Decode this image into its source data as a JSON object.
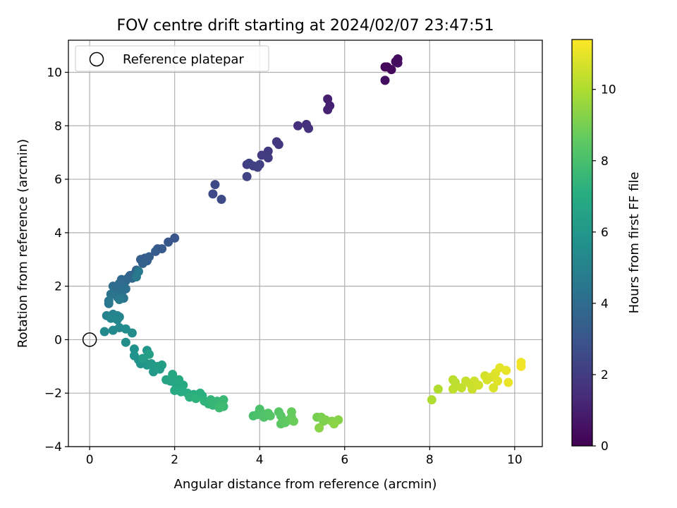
{
  "chart_data": {
    "type": "scatter",
    "title": "FOV centre drift starting at 2024/02/07 23:47:51",
    "xlabel": "Angular distance from reference (arcmin)",
    "ylabel": "Rotation from reference (arcmin)",
    "xlim": [
      -0.5,
      10.65
    ],
    "ylim": [
      -4,
      11.2
    ],
    "xticks": [
      0,
      2,
      4,
      6,
      8,
      10
    ],
    "yticks": [
      -4,
      -2,
      0,
      2,
      4,
      6,
      8,
      10
    ],
    "grid": true,
    "legend": {
      "position": "top-left",
      "entries": [
        "Reference platepar"
      ]
    },
    "reference_point": {
      "x": 0,
      "y": 0
    },
    "colorbar": {
      "label": "Hours from first FF file",
      "colormap": "viridis",
      "range": [
        0,
        11.4
      ],
      "ticks": [
        0,
        2,
        4,
        6,
        8,
        10
      ]
    },
    "series": [
      {
        "points": [
          {
            "x": 6.95,
            "y": 10.2,
            "c": 0.1
          },
          {
            "x": 7.0,
            "y": 10.2,
            "c": 0.2
          },
          {
            "x": 7.1,
            "y": 10.1,
            "c": 0.25
          },
          {
            "x": 7.2,
            "y": 10.4,
            "c": 0.3
          },
          {
            "x": 7.25,
            "y": 10.5,
            "c": 0.35
          },
          {
            "x": 7.25,
            "y": 10.35,
            "c": 0.4
          },
          {
            "x": 6.95,
            "y": 9.7,
            "c": 0.45
          },
          {
            "x": 5.6,
            "y": 9.0,
            "c": 1.0
          },
          {
            "x": 5.65,
            "y": 8.75,
            "c": 1.05
          },
          {
            "x": 5.6,
            "y": 8.6,
            "c": 1.1
          },
          {
            "x": 4.9,
            "y": 8.0,
            "c": 1.5
          },
          {
            "x": 5.1,
            "y": 8.05,
            "c": 1.55
          },
          {
            "x": 5.15,
            "y": 7.9,
            "c": 1.6
          },
          {
            "x": 4.4,
            "y": 7.4,
            "c": 1.8
          },
          {
            "x": 4.45,
            "y": 7.3,
            "c": 1.85
          },
          {
            "x": 4.2,
            "y": 7.05,
            "c": 1.9
          },
          {
            "x": 4.05,
            "y": 6.9,
            "c": 1.95
          },
          {
            "x": 4.2,
            "y": 6.8,
            "c": 2.0
          },
          {
            "x": 3.7,
            "y": 6.55,
            "c": 2.05
          },
          {
            "x": 3.85,
            "y": 6.5,
            "c": 2.1
          },
          {
            "x": 4.0,
            "y": 6.55,
            "c": 2.15
          },
          {
            "x": 3.75,
            "y": 6.6,
            "c": 2.2
          },
          {
            "x": 3.95,
            "y": 6.45,
            "c": 2.25
          },
          {
            "x": 3.7,
            "y": 6.1,
            "c": 2.3
          },
          {
            "x": 2.95,
            "y": 5.8,
            "c": 2.5
          },
          {
            "x": 2.9,
            "y": 5.45,
            "c": 2.55
          },
          {
            "x": 3.1,
            "y": 5.25,
            "c": 2.6
          },
          {
            "x": 2.0,
            "y": 3.8,
            "c": 3.0
          },
          {
            "x": 1.85,
            "y": 3.65,
            "c": 3.05
          },
          {
            "x": 1.6,
            "y": 3.4,
            "c": 3.15
          },
          {
            "x": 1.7,
            "y": 3.4,
            "c": 3.2
          },
          {
            "x": 1.55,
            "y": 3.3,
            "c": 3.25
          },
          {
            "x": 1.4,
            "y": 3.1,
            "c": 3.3
          },
          {
            "x": 1.3,
            "y": 3.05,
            "c": 3.35
          },
          {
            "x": 1.2,
            "y": 3.0,
            "c": 3.4
          },
          {
            "x": 1.35,
            "y": 2.95,
            "c": 3.45
          },
          {
            "x": 1.25,
            "y": 2.85,
            "c": 3.5
          },
          {
            "x": 1.1,
            "y": 2.6,
            "c": 3.55
          },
          {
            "x": 1.05,
            "y": 2.45,
            "c": 3.6
          },
          {
            "x": 0.95,
            "y": 2.4,
            "c": 3.65
          },
          {
            "x": 0.9,
            "y": 2.3,
            "c": 3.7
          },
          {
            "x": 1.0,
            "y": 2.3,
            "c": 3.75
          },
          {
            "x": 0.85,
            "y": 2.2,
            "c": 3.8
          },
          {
            "x": 0.75,
            "y": 2.25,
            "c": 3.85
          },
          {
            "x": 0.7,
            "y": 2.1,
            "c": 3.9
          },
          {
            "x": 0.8,
            "y": 2.05,
            "c": 3.95
          },
          {
            "x": 0.65,
            "y": 2.0,
            "c": 4.0
          },
          {
            "x": 0.55,
            "y": 2.0,
            "c": 4.05
          },
          {
            "x": 0.6,
            "y": 1.85,
            "c": 4.1
          },
          {
            "x": 0.7,
            "y": 1.8,
            "c": 4.15
          },
          {
            "x": 0.85,
            "y": 1.9,
            "c": 4.2
          },
          {
            "x": 0.75,
            "y": 1.7,
            "c": 4.25
          },
          {
            "x": 0.5,
            "y": 1.7,
            "c": 4.3
          },
          {
            "x": 0.65,
            "y": 1.6,
            "c": 4.35
          },
          {
            "x": 0.8,
            "y": 1.55,
            "c": 4.4
          },
          {
            "x": 0.45,
            "y": 1.45,
            "c": 4.45
          },
          {
            "x": 0.45,
            "y": 1.35,
            "c": 4.5
          },
          {
            "x": 1.1,
            "y": 2.35,
            "c": 4.55
          },
          {
            "x": 1.15,
            "y": 2.55,
            "c": 4.6
          },
          {
            "x": 0.7,
            "y": 1.5,
            "c": 4.65
          },
          {
            "x": 0.4,
            "y": 0.9,
            "c": 5.0
          },
          {
            "x": 0.55,
            "y": 0.95,
            "c": 5.05
          },
          {
            "x": 0.65,
            "y": 0.9,
            "c": 5.1
          },
          {
            "x": 0.7,
            "y": 0.85,
            "c": 5.15
          },
          {
            "x": 0.5,
            "y": 0.8,
            "c": 5.2
          },
          {
            "x": 0.65,
            "y": 0.75,
            "c": 5.25
          },
          {
            "x": 0.7,
            "y": 0.45,
            "c": 5.3
          },
          {
            "x": 0.55,
            "y": 0.35,
            "c": 5.35
          },
          {
            "x": 0.35,
            "y": 0.3,
            "c": 5.4
          },
          {
            "x": 0.85,
            "y": 0.4,
            "c": 5.45
          },
          {
            "x": 1.0,
            "y": 0.25,
            "c": 5.5
          },
          {
            "x": 0.85,
            "y": -0.1,
            "c": 5.55
          },
          {
            "x": 1.05,
            "y": -0.35,
            "c": 5.7
          },
          {
            "x": 1.05,
            "y": -0.6,
            "c": 5.75
          },
          {
            "x": 1.15,
            "y": -0.75,
            "c": 5.8
          },
          {
            "x": 1.2,
            "y": -0.9,
            "c": 5.85
          },
          {
            "x": 1.3,
            "y": -0.85,
            "c": 5.9
          },
          {
            "x": 1.35,
            "y": -0.4,
            "c": 5.95
          },
          {
            "x": 1.35,
            "y": -0.95,
            "c": 6.0
          },
          {
            "x": 1.45,
            "y": -0.9,
            "c": 6.05
          },
          {
            "x": 1.5,
            "y": -1.0,
            "c": 6.1
          },
          {
            "x": 1.5,
            "y": -1.2,
            "c": 6.15
          },
          {
            "x": 1.6,
            "y": -1.0,
            "c": 6.2
          },
          {
            "x": 1.65,
            "y": -1.1,
            "c": 6.25
          },
          {
            "x": 1.7,
            "y": -0.95,
            "c": 6.3
          },
          {
            "x": 1.25,
            "y": -0.7,
            "c": 6.35
          },
          {
            "x": 1.4,
            "y": -0.55,
            "c": 6.4
          },
          {
            "x": 1.8,
            "y": -1.5,
            "c": 6.6
          },
          {
            "x": 1.9,
            "y": -1.55,
            "c": 6.65
          },
          {
            "x": 2.0,
            "y": -1.6,
            "c": 6.7
          },
          {
            "x": 1.95,
            "y": -1.3,
            "c": 6.75
          },
          {
            "x": 2.05,
            "y": -1.7,
            "c": 6.8
          },
          {
            "x": 2.1,
            "y": -1.5,
            "c": 6.85
          },
          {
            "x": 2.2,
            "y": -1.7,
            "c": 6.9
          },
          {
            "x": 2.0,
            "y": -1.9,
            "c": 6.95
          },
          {
            "x": 2.15,
            "y": -1.95,
            "c": 7.0
          },
          {
            "x": 2.3,
            "y": -2.0,
            "c": 7.05
          },
          {
            "x": 2.45,
            "y": -2.05,
            "c": 7.1
          },
          {
            "x": 2.6,
            "y": -2.0,
            "c": 7.15
          },
          {
            "x": 2.65,
            "y": -2.1,
            "c": 7.2
          },
          {
            "x": 2.35,
            "y": -2.15,
            "c": 7.25
          },
          {
            "x": 2.5,
            "y": -2.2,
            "c": 7.3
          },
          {
            "x": 2.7,
            "y": -2.3,
            "c": 7.35
          },
          {
            "x": 2.8,
            "y": -2.4,
            "c": 7.4
          },
          {
            "x": 2.85,
            "y": -2.25,
            "c": 7.45
          },
          {
            "x": 2.9,
            "y": -2.45,
            "c": 7.5
          },
          {
            "x": 3.0,
            "y": -2.3,
            "c": 7.55
          },
          {
            "x": 3.05,
            "y": -2.4,
            "c": 7.6
          },
          {
            "x": 3.15,
            "y": -2.25,
            "c": 7.65
          },
          {
            "x": 3.15,
            "y": -2.5,
            "c": 7.7
          },
          {
            "x": 3.05,
            "y": -2.55,
            "c": 7.75
          },
          {
            "x": 3.85,
            "y": -2.85,
            "c": 8.0
          },
          {
            "x": 3.95,
            "y": -2.8,
            "c": 8.05
          },
          {
            "x": 4.0,
            "y": -2.6,
            "c": 8.1
          },
          {
            "x": 4.05,
            "y": -2.75,
            "c": 8.15
          },
          {
            "x": 4.1,
            "y": -2.9,
            "c": 8.2
          },
          {
            "x": 4.2,
            "y": -2.75,
            "c": 8.25
          },
          {
            "x": 4.25,
            "y": -2.85,
            "c": 8.3
          },
          {
            "x": 4.45,
            "y": -2.7,
            "c": 8.35
          },
          {
            "x": 4.5,
            "y": -2.85,
            "c": 8.4
          },
          {
            "x": 4.55,
            "y": -3.0,
            "c": 8.45
          },
          {
            "x": 4.5,
            "y": -3.15,
            "c": 8.5
          },
          {
            "x": 4.6,
            "y": -3.1,
            "c": 8.55
          },
          {
            "x": 4.7,
            "y": -3.0,
            "c": 8.6
          },
          {
            "x": 4.75,
            "y": -2.9,
            "c": 8.65
          },
          {
            "x": 4.75,
            "y": -2.7,
            "c": 8.7
          },
          {
            "x": 4.8,
            "y": -3.05,
            "c": 8.75
          },
          {
            "x": 5.35,
            "y": -2.9,
            "c": 9.0
          },
          {
            "x": 5.45,
            "y": -2.9,
            "c": 9.05
          },
          {
            "x": 5.5,
            "y": -3.05,
            "c": 9.1
          },
          {
            "x": 5.55,
            "y": -3.0,
            "c": 9.15
          },
          {
            "x": 5.7,
            "y": -3.05,
            "c": 9.2
          },
          {
            "x": 5.85,
            "y": -3.0,
            "c": 9.25
          },
          {
            "x": 5.4,
            "y": -3.3,
            "c": 9.3
          },
          {
            "x": 5.75,
            "y": -3.15,
            "c": 9.35
          },
          {
            "x": 8.05,
            "y": -2.25,
            "c": 10.0
          },
          {
            "x": 8.2,
            "y": -1.85,
            "c": 10.05
          },
          {
            "x": 8.55,
            "y": -1.5,
            "c": 10.2
          },
          {
            "x": 8.6,
            "y": -1.6,
            "c": 10.25
          },
          {
            "x": 8.55,
            "y": -1.85,
            "c": 10.3
          },
          {
            "x": 8.75,
            "y": -1.8,
            "c": 10.35
          },
          {
            "x": 8.85,
            "y": -1.55,
            "c": 10.4
          },
          {
            "x": 8.95,
            "y": -1.65,
            "c": 10.45
          },
          {
            "x": 9.0,
            "y": -1.85,
            "c": 10.5
          },
          {
            "x": 9.05,
            "y": -1.55,
            "c": 10.55
          },
          {
            "x": 9.15,
            "y": -1.7,
            "c": 10.6
          },
          {
            "x": 9.3,
            "y": -1.35,
            "c": 10.65
          },
          {
            "x": 9.35,
            "y": -1.5,
            "c": 10.7
          },
          {
            "x": 9.45,
            "y": -1.4,
            "c": 10.75
          },
          {
            "x": 9.5,
            "y": -1.8,
            "c": 10.8
          },
          {
            "x": 9.55,
            "y": -1.25,
            "c": 10.85
          },
          {
            "x": 9.6,
            "y": -1.55,
            "c": 10.9
          },
          {
            "x": 9.65,
            "y": -1.05,
            "c": 10.95
          },
          {
            "x": 9.8,
            "y": -1.15,
            "c": 11.0
          },
          {
            "x": 9.85,
            "y": -1.6,
            "c": 11.05
          },
          {
            "x": 10.15,
            "y": -0.85,
            "c": 11.15
          },
          {
            "x": 10.15,
            "y": -1.0,
            "c": 11.2
          }
        ]
      }
    ]
  }
}
